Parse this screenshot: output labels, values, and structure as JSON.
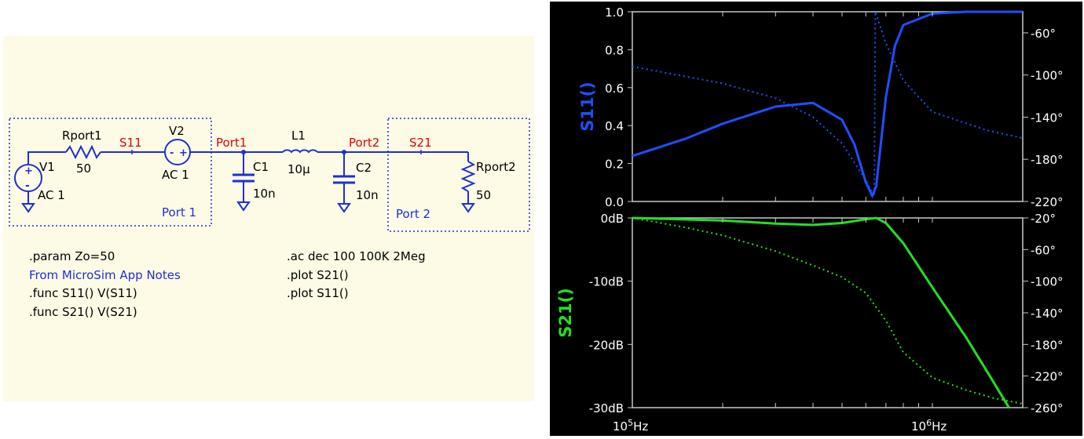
{
  "schematic": {
    "background": "#fdfbe6",
    "wire_color": "#1f2fd6",
    "net_label_color": "#e00000",
    "components": {
      "v1": {
        "name": "V1",
        "value": "AC 1"
      },
      "rport1": {
        "name": "Rport1",
        "value": "50"
      },
      "v2": {
        "name": "V2",
        "value": "AC 1"
      },
      "c1": {
        "name": "C1",
        "value": "10n"
      },
      "l1": {
        "name": "L1",
        "value": "10µ"
      },
      "c2": {
        "name": "C2",
        "value": "10n"
      },
      "rport2": {
        "name": "Rport2",
        "value": "50"
      }
    },
    "net_labels": {
      "s11": "S11",
      "port1": "Port1",
      "port2": "Port2",
      "s21": "S21"
    },
    "box_labels": {
      "port1": "Port 1",
      "port2": "Port 2"
    },
    "directives_left": [
      ".param Zo=50",
      "From MicroSim App Notes",
      ".func S11() V(S11)",
      ".func S21() V(S21)"
    ],
    "directives_right": [
      ".ac dec 100 100K 2Meg",
      ".plot S21()",
      ".plot S11()"
    ]
  },
  "plot": {
    "background": "#000000",
    "top_pane": {
      "trace_label": "S11()",
      "trace_color": "#1f4fff",
      "left_ticks": [
        "1.0",
        "0.8",
        "0.6",
        "0.4",
        "0.2",
        "0.0"
      ],
      "right_ticks": [
        "-60°",
        "-100°",
        "-140°",
        "-180°",
        "-220°"
      ]
    },
    "bottom_pane": {
      "trace_label": "S21()",
      "trace_color": "#22e022",
      "left_ticks": [
        "0dB",
        "-10dB",
        "-20dB",
        "-30dB"
      ],
      "right_ticks": [
        "-20°",
        "-60°",
        "-100°",
        "-140°",
        "-180°",
        "-220°",
        "-260°"
      ]
    },
    "x_ticks": [
      {
        "mant": "10",
        "exp": "5",
        "unit": "Hz"
      },
      {
        "mant": "10",
        "exp": "6",
        "unit": "Hz"
      }
    ]
  },
  "chart_data": [
    {
      "type": "line",
      "x_scale": "log",
      "xlim": [
        100000,
        2000000
      ],
      "ylim": [
        0,
        1
      ],
      "y2lim": [
        -220,
        -40
      ],
      "series": [
        {
          "name": "S11()",
          "axis": "magnitude",
          "x": [
            100000,
            150000,
            200000,
            300000,
            400000,
            500000,
            550000,
            600000,
            630000,
            650000,
            700000,
            750000,
            800000,
            1000000,
            1300000,
            2000000
          ],
          "values": [
            0.24,
            0.33,
            0.41,
            0.5,
            0.52,
            0.43,
            0.3,
            0.1,
            0.03,
            0.08,
            0.55,
            0.82,
            0.93,
            0.99,
            1.0,
            1.0
          ]
        },
        {
          "axis": "phase",
          "x": [
            100000,
            200000,
            300000,
            400000,
            500000,
            600000,
            640000,
            645000,
            700000,
            800000,
            1000000,
            1500000,
            2000000
          ],
          "values": [
            -92,
            -108,
            -122,
            -140,
            -165,
            -200,
            -215,
            -40,
            -70,
            -105,
            -135,
            -152,
            -160
          ]
        }
      ]
    },
    {
      "type": "line",
      "x_scale": "log",
      "xlim": [
        100000,
        2000000
      ],
      "ylim": [
        -30,
        0
      ],
      "y2lim": [
        -260,
        -20
      ],
      "series": [
        {
          "name": "S21()",
          "axis": "magnitude",
          "x": [
            100000,
            200000,
            300000,
            400000,
            500000,
            600000,
            650000,
            700000,
            800000,
            1000000,
            1300000,
            1600000,
            1800000
          ],
          "values": [
            0,
            -0.4,
            -0.9,
            -1.1,
            -0.8,
            -0.2,
            0,
            -0.8,
            -4,
            -11,
            -19,
            -26,
            -30
          ]
        },
        {
          "axis": "phase",
          "x": [
            100000,
            150000,
            200000,
            300000,
            400000,
            500000,
            600000,
            700000,
            800000,
            1000000,
            1300000,
            1600000,
            2000000
          ],
          "values": [
            -20,
            -32,
            -42,
            -62,
            -80,
            -95,
            -115,
            -150,
            -190,
            -222,
            -238,
            -248,
            -255
          ]
        }
      ]
    }
  ]
}
